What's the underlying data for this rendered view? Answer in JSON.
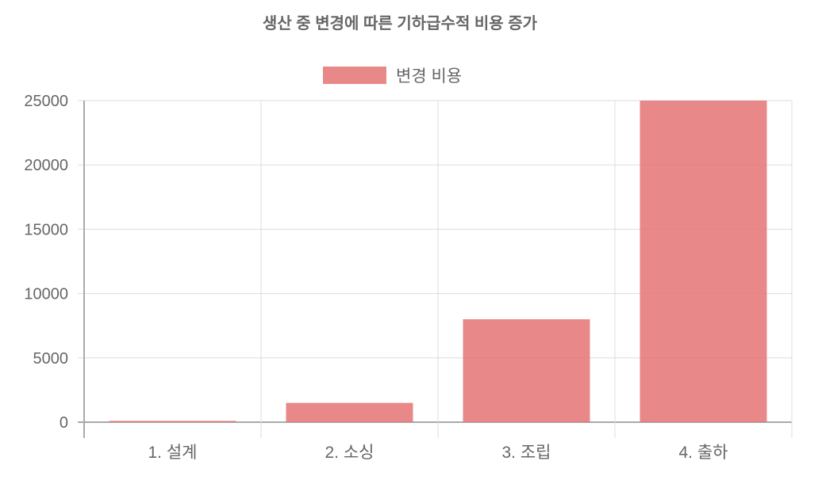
{
  "chart_data": {
    "type": "bar",
    "title": "생산 중 변경에 따른 기하급수적 비용 증가",
    "categories": [
      "1. 설계",
      "2. 소싱",
      "3. 조립",
      "4. 출하"
    ],
    "series": [
      {
        "name": "변경 비용",
        "values": [
          100,
          1500,
          8000,
          25000
        ],
        "color": "#e57373"
      }
    ],
    "ylim": [
      0,
      25000
    ],
    "yticks": [
      "0",
      "5000",
      "10000",
      "15000",
      "20000",
      "25000"
    ],
    "grid": true,
    "legend": "top"
  }
}
